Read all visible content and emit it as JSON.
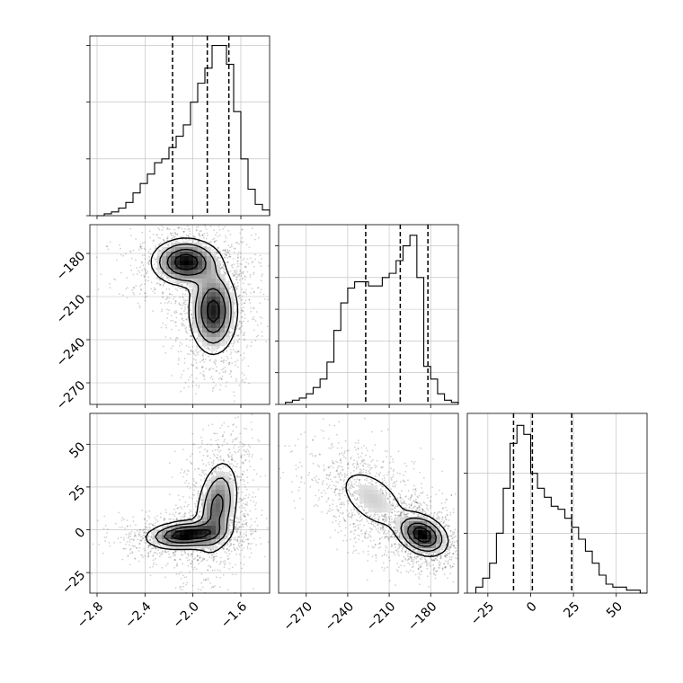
{
  "chart_data": [
    {
      "type": "histogram",
      "variable_index": 0,
      "bin_edges": [
        -2.8,
        -2.74,
        -2.68,
        -2.62,
        -2.56,
        -2.5,
        -2.44,
        -2.38,
        -2.32,
        -2.26,
        -2.2,
        -2.14,
        -2.08,
        -2.02,
        -1.96,
        -1.9,
        -1.84,
        -1.78,
        -1.72,
        -1.66,
        -1.6,
        -1.54,
        -1.48,
        -1.42,
        -1.36
      ],
      "counts": [
        0,
        1,
        2,
        4,
        7,
        12,
        17,
        22,
        28,
        30,
        36,
        42,
        48,
        60,
        70,
        78,
        90,
        90,
        80,
        55,
        30,
        14,
        6,
        3
      ],
      "ylim": [
        0,
        95
      ],
      "quantiles": [
        -2.17,
        -1.88,
        -1.7
      ],
      "xlim": [
        -2.86,
        -1.36
      ],
      "yticks": [
        0,
        30,
        60,
        90
      ]
    },
    {
      "type": "histogram",
      "variable_index": 1,
      "bin_edges": [
        -285,
        -280,
        -275,
        -270,
        -265,
        -260,
        -255,
        -250,
        -245,
        -240,
        -235,
        -230,
        -225,
        -220,
        -215,
        -210,
        -205,
        -200,
        -195,
        -190,
        -185,
        -180,
        -175,
        -170,
        -165,
        -160
      ],
      "counts": [
        1,
        2,
        3,
        5,
        8,
        12,
        20,
        35,
        48,
        55,
        58,
        58,
        56,
        56,
        60,
        62,
        68,
        75,
        80,
        60,
        18,
        12,
        5,
        2,
        1
      ],
      "ylim": [
        0,
        85
      ],
      "quantiles": [
        -227,
        -202,
        -182
      ],
      "xlim": [
        -290,
        -160
      ],
      "yticks": [
        0,
        15,
        30,
        45,
        60,
        75
      ]
    },
    {
      "type": "histogram",
      "variable_index": 2,
      "bin_edges": [
        -32,
        -28,
        -24,
        -20,
        -16,
        -12,
        -8,
        -4,
        0,
        4,
        8,
        12,
        16,
        20,
        24,
        28,
        32,
        36,
        40,
        44,
        48,
        52,
        56,
        60,
        64,
        68
      ],
      "counts": [
        2,
        5,
        10,
        20,
        35,
        50,
        56,
        53,
        40,
        35,
        32,
        29,
        28,
        25,
        22,
        18,
        14,
        10,
        6,
        3,
        2,
        2,
        1,
        1,
        0
      ],
      "ylim": [
        0,
        60
      ],
      "quantiles": [
        -10,
        1,
        24
      ],
      "xlim": [
        -37,
        68
      ],
      "yticks": [
        0,
        20,
        40
      ]
    },
    {
      "type": "contour",
      "variables": [
        0,
        1
      ],
      "xlim": [
        -2.86,
        -1.36
      ],
      "ylim": [
        -285,
        -160
      ],
      "xticks": [
        -2.8,
        -2.4,
        -2.0,
        -1.6
      ],
      "yticks": [
        -180,
        -210,
        -240,
        -270
      ],
      "ytick_labels": [
        "−180",
        "−210",
        "−240",
        "−270"
      ],
      "modes": [
        {
          "x": -2.06,
          "y": -186,
          "sx": 0.14,
          "sy": 8,
          "rho": 0.0,
          "weight": 0.45
        },
        {
          "x": -1.83,
          "y": -220,
          "sx": 0.1,
          "sy": 15,
          "rho": 0.0,
          "weight": 0.55
        }
      ]
    },
    {
      "type": "contour",
      "variables": [
        0,
        2
      ],
      "xlim": [
        -2.86,
        -1.36
      ],
      "ylim": [
        -37,
        68
      ],
      "xticks": [
        -2.8,
        -2.4,
        -2.0,
        -1.6
      ],
      "xtick_labels": [
        "−2.8",
        "−2.4",
        "−2.0",
        "−1.6"
      ],
      "yticks": [
        50,
        25,
        0,
        -25
      ],
      "ytick_labels": [
        "50",
        "25",
        "0",
        "−25"
      ],
      "modes": [
        {
          "x": -2.06,
          "y": -3,
          "sx": 0.16,
          "sy": 4,
          "rho": 0.2,
          "weight": 0.45
        },
        {
          "x": -1.8,
          "y": 13,
          "sx": 0.09,
          "sy": 14,
          "rho": 0.3,
          "weight": 0.55
        }
      ]
    },
    {
      "type": "contour",
      "variables": [
        1,
        2
      ],
      "xlim": [
        -290,
        -160
      ],
      "ylim": [
        -37,
        68
      ],
      "xticks": [
        -270,
        -240,
        -210,
        -180
      ],
      "xtick_labels": [
        "−270",
        "−240",
        "−210",
        "−180"
      ],
      "modes": [
        {
          "x": -222,
          "y": 18,
          "sx": 15,
          "sy": 11,
          "rho": -0.5,
          "weight": 0.45
        },
        {
          "x": -186,
          "y": -3,
          "sx": 9,
          "sy": 6,
          "rho": -0.3,
          "weight": 0.55
        }
      ]
    },
    {
      "type": "axis",
      "xticks": [
        -25,
        0,
        25,
        50
      ],
      "xtick_labels": [
        "−25",
        "0",
        "25",
        "50"
      ]
    }
  ]
}
